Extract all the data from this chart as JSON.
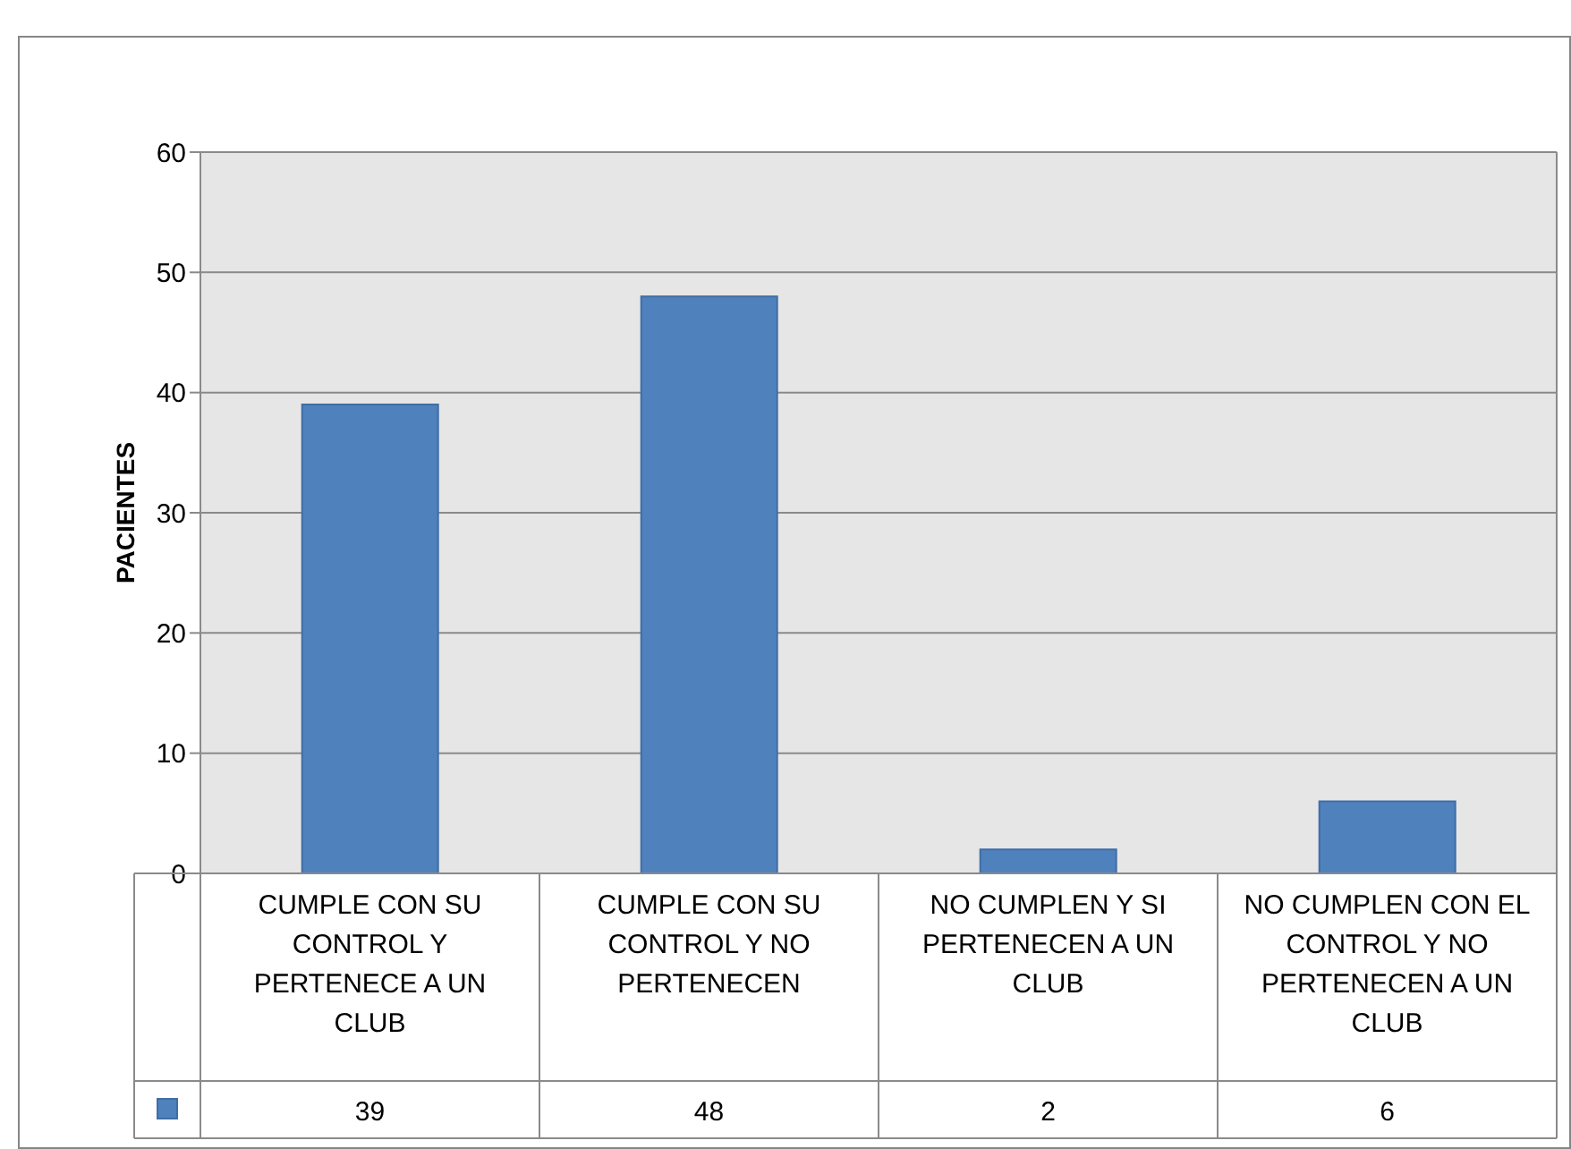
{
  "chart_data": {
    "type": "bar",
    "ylabel": "PACIENTES",
    "categories": [
      "CUMPLE CON SU CONTROL Y PERTENECE A UN CLUB",
      "CUMPLE CON SU CONTROL Y NO PERTENECEN",
      "NO CUMPLEN Y SI PERTENECEN A UN CLUB",
      "NO CUMPLEN CON EL CONTROL Y NO PERTENECEN A UN CLUB"
    ],
    "values": [
      39,
      48,
      2,
      6
    ],
    "color": "#4f81bd",
    "ylim": [
      0,
      60
    ],
    "yticks": [
      0,
      10,
      20,
      30,
      40,
      50,
      60
    ],
    "grid": "y",
    "data_labels": true
  }
}
